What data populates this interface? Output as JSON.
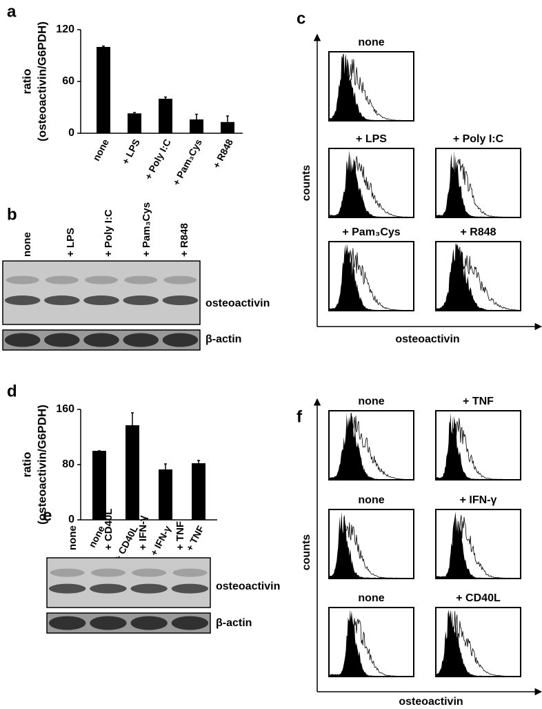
{
  "chart_data": [
    {
      "type": "bar",
      "panel": "a",
      "ylabel": [
        "ratio",
        "(osteoactivin/G6PDH)"
      ],
      "categories": [
        "none",
        "+ LPS",
        "+ Poly I:C",
        "+ Pam₃Cys",
        "+ R848"
      ],
      "values": [
        100,
        23,
        40,
        16,
        13
      ],
      "errors": [
        1,
        1,
        2,
        6,
        7
      ],
      "color": "#000000",
      "ylim": [
        0,
        120
      ],
      "yticks": [
        0,
        60,
        120
      ]
    },
    {
      "type": "bar",
      "panel": "d",
      "ylabel": [
        "ratio",
        "(osteoactivin/G6PDH)"
      ],
      "categories": [
        "none",
        "+ CD40L",
        "+ IFN-γ",
        "+ TNF"
      ],
      "values": [
        100,
        137,
        73,
        82
      ],
      "errors": [
        0,
        18,
        8,
        4
      ],
      "color": "#000000",
      "ylim": [
        0,
        160
      ],
      "yticks": [
        0,
        80,
        160
      ]
    }
  ],
  "blots": [
    {
      "panel": "b",
      "lanes": [
        "none",
        "+ LPS",
        "+ Poly I:C",
        "+ Pam₃Cys",
        "+ R848"
      ],
      "bands": [
        "osteoactivin",
        "β-actin"
      ]
    },
    {
      "panel": "e",
      "lanes": [
        "none",
        "+ CD40L",
        "+ IFN-γ",
        "+ TNF"
      ],
      "bands": [
        "osteoactivin",
        "β-actin"
      ]
    }
  ],
  "histograms": [
    {
      "panel": "c",
      "ylabel": "counts",
      "xlabel": "osteoactivin",
      "plots": [
        "none",
        "+ LPS",
        "+ Poly I:C",
        "+ Pam₃Cys",
        "+ R848"
      ]
    },
    {
      "panel": "f",
      "ylabel": "counts",
      "xlabel": "osteoactivin",
      "plots": [
        "none",
        "+ TNF",
        "none",
        "+ IFN-γ",
        "none",
        "+ CD40L"
      ]
    }
  ]
}
